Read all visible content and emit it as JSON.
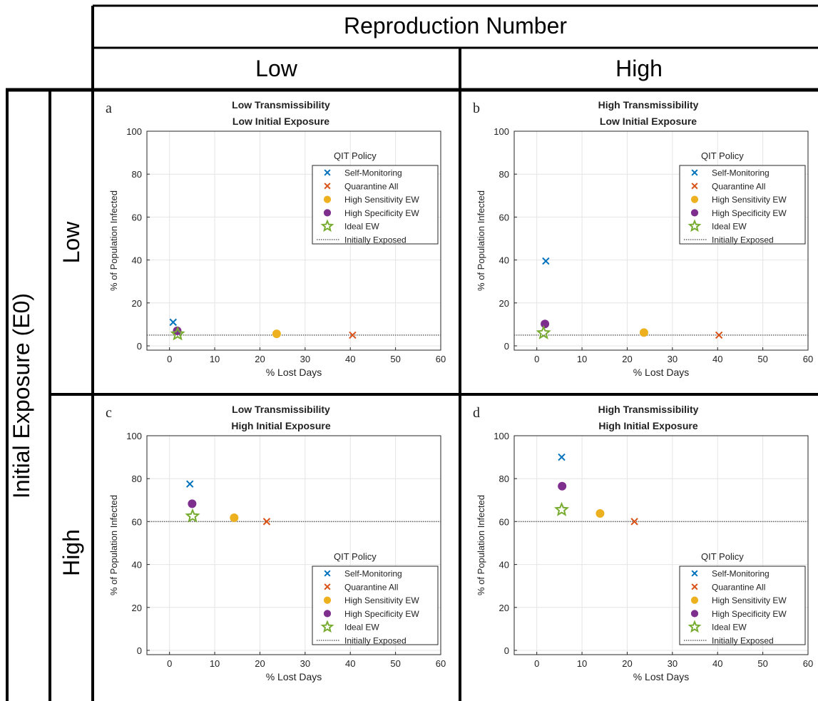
{
  "header": {
    "top": "Reproduction Number",
    "col_low": "Low",
    "col_high": "High",
    "side": "Initial Exposure (E0)",
    "row_low": "Low",
    "row_high": "High"
  },
  "colors": {
    "self_monitoring": "#0072BD",
    "quarantine_all": "#D95319",
    "high_sensitivity": "#EDB120",
    "high_specificity": "#7E2F8E",
    "ideal": "#77AC30",
    "initially_exposed": "#666666"
  },
  "chart_data": [
    {
      "type": "scatter",
      "panel_label": "a",
      "title": [
        "Low Transmissibility",
        "Low Initial Exposure"
      ],
      "xlabel": "% Lost Days",
      "ylabel": "% of Population Infected",
      "xlim": [
        -5,
        60
      ],
      "ylim": [
        -2,
        100
      ],
      "xticks": [
        0,
        10,
        20,
        30,
        40,
        50,
        60
      ],
      "yticks": [
        0,
        20,
        40,
        60,
        80,
        100
      ],
      "grid": true,
      "legend_title": "QIT Policy",
      "legend_position": "top-right",
      "series": [
        {
          "name": "Self-Monitoring",
          "marker": "x",
          "x": 0.8,
          "y": 11
        },
        {
          "name": "Quarantine All",
          "marker": "x",
          "x": 40.5,
          "y": 5
        },
        {
          "name": "High Sensitivity EW",
          "marker": "circle",
          "x": 23.7,
          "y": 5.6
        },
        {
          "name": "High Specificity EW",
          "marker": "circle",
          "x": 1.7,
          "y": 7
        },
        {
          "name": "Ideal EW",
          "marker": "star",
          "x": 1.8,
          "y": 5.5
        }
      ],
      "reference_line": {
        "name": "Initially Exposed",
        "y": 5
      }
    },
    {
      "type": "scatter",
      "panel_label": "b",
      "title": [
        "High Transmissibility",
        "Low Initial Exposure"
      ],
      "xlabel": "% Lost Days",
      "ylabel": "% of Population Infected",
      "xlim": [
        -5,
        60
      ],
      "ylim": [
        -2,
        100
      ],
      "xticks": [
        0,
        10,
        20,
        30,
        40,
        50,
        60
      ],
      "yticks": [
        0,
        20,
        40,
        60,
        80,
        100
      ],
      "grid": true,
      "legend_title": "QIT Policy",
      "legend_position": "top-right",
      "series": [
        {
          "name": "Self-Monitoring",
          "marker": "x",
          "x": 2,
          "y": 39.5
        },
        {
          "name": "Quarantine All",
          "marker": "x",
          "x": 40.3,
          "y": 5
        },
        {
          "name": "High Sensitivity EW",
          "marker": "circle",
          "x": 23.7,
          "y": 6.2
        },
        {
          "name": "High Specificity EW",
          "marker": "circle",
          "x": 1.8,
          "y": 10.2
        },
        {
          "name": "Ideal EW",
          "marker": "star",
          "x": 1.5,
          "y": 6
        }
      ],
      "reference_line": {
        "name": "Initially Exposed",
        "y": 5
      }
    },
    {
      "type": "scatter",
      "panel_label": "c",
      "title": [
        "Low Transmissibility",
        "High Initial Exposure"
      ],
      "xlabel": "% Lost Days",
      "ylabel": "% of Population Infected",
      "xlim": [
        -5,
        60
      ],
      "ylim": [
        -2,
        100
      ],
      "xticks": [
        0,
        10,
        20,
        30,
        40,
        50,
        60
      ],
      "yticks": [
        0,
        20,
        40,
        60,
        80,
        100
      ],
      "grid": true,
      "legend_title": "QIT Policy",
      "legend_position": "bottom-right",
      "series": [
        {
          "name": "Self-Monitoring",
          "marker": "x",
          "x": 4.5,
          "y": 77.5
        },
        {
          "name": "Quarantine All",
          "marker": "x",
          "x": 21.5,
          "y": 60
        },
        {
          "name": "High Sensitivity EW",
          "marker": "circle",
          "x": 14.3,
          "y": 61.8
        },
        {
          "name": "High Specificity EW",
          "marker": "circle",
          "x": 5,
          "y": 68.3
        },
        {
          "name": "Ideal EW",
          "marker": "star",
          "x": 5.1,
          "y": 62.5
        }
      ],
      "reference_line": {
        "name": "Initially Exposed",
        "y": 60
      }
    },
    {
      "type": "scatter",
      "panel_label": "d",
      "title": [
        "High Transmissibility",
        "High Initial Exposure"
      ],
      "xlabel": "% Lost Days",
      "ylabel": "% of Population Infected",
      "xlim": [
        -5,
        60
      ],
      "ylim": [
        -2,
        100
      ],
      "xticks": [
        0,
        10,
        20,
        30,
        40,
        50,
        60
      ],
      "yticks": [
        0,
        20,
        40,
        60,
        80,
        100
      ],
      "grid": true,
      "legend_title": "QIT Policy",
      "legend_position": "bottom-right",
      "series": [
        {
          "name": "Self-Monitoring",
          "marker": "x",
          "x": 5.5,
          "y": 90
        },
        {
          "name": "Quarantine All",
          "marker": "x",
          "x": 21.6,
          "y": 60
        },
        {
          "name": "High Sensitivity EW",
          "marker": "circle",
          "x": 14,
          "y": 63.8
        },
        {
          "name": "High Specificity EW",
          "marker": "circle",
          "x": 5.6,
          "y": 76.5
        },
        {
          "name": "Ideal EW",
          "marker": "star",
          "x": 5.5,
          "y": 65.5
        }
      ],
      "reference_line": {
        "name": "Initially Exposed",
        "y": 60
      }
    }
  ]
}
